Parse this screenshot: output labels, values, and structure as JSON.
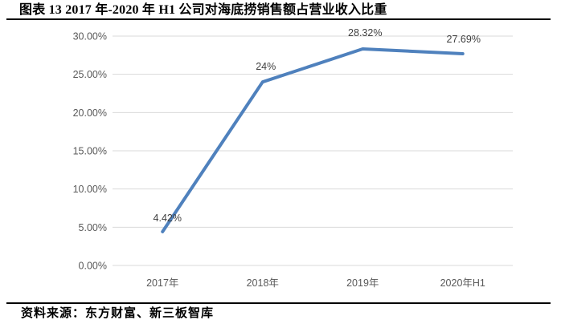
{
  "page": {
    "title": "图表 13 2017 年-2020 年 H1 公司对海底捞销售额占营业收入比重",
    "source": "资料来源：东方财富、新三板智库"
  },
  "colors": {
    "line": "#4F81BD",
    "gridline": "#D9D9D9",
    "axis_label": "#595959",
    "data_label": "#404040",
    "rule": "#000000",
    "background": "#FFFFFF"
  },
  "chart_data": {
    "type": "line",
    "title": "图表 13 2017 年-2020 年 H1 公司对海底捞销售额占营业收入比重",
    "categories": [
      "2017年",
      "2018年",
      "2019年",
      "2020年H1"
    ],
    "values": [
      4.42,
      24,
      28.32,
      27.69
    ],
    "data_labels": [
      "4.42%",
      "24%",
      "28.32%",
      "27.69%"
    ],
    "xlabel": "",
    "ylabel": "",
    "ylim": [
      0,
      30
    ],
    "ytick_step": 5,
    "ytick_labels": [
      "0.00%",
      "5.00%",
      "10.00%",
      "15.00%",
      "20.00%",
      "25.00%",
      "30.00%"
    ],
    "grid": true,
    "legend_position": "none",
    "source": "资料来源：东方财富、新三板智库"
  }
}
